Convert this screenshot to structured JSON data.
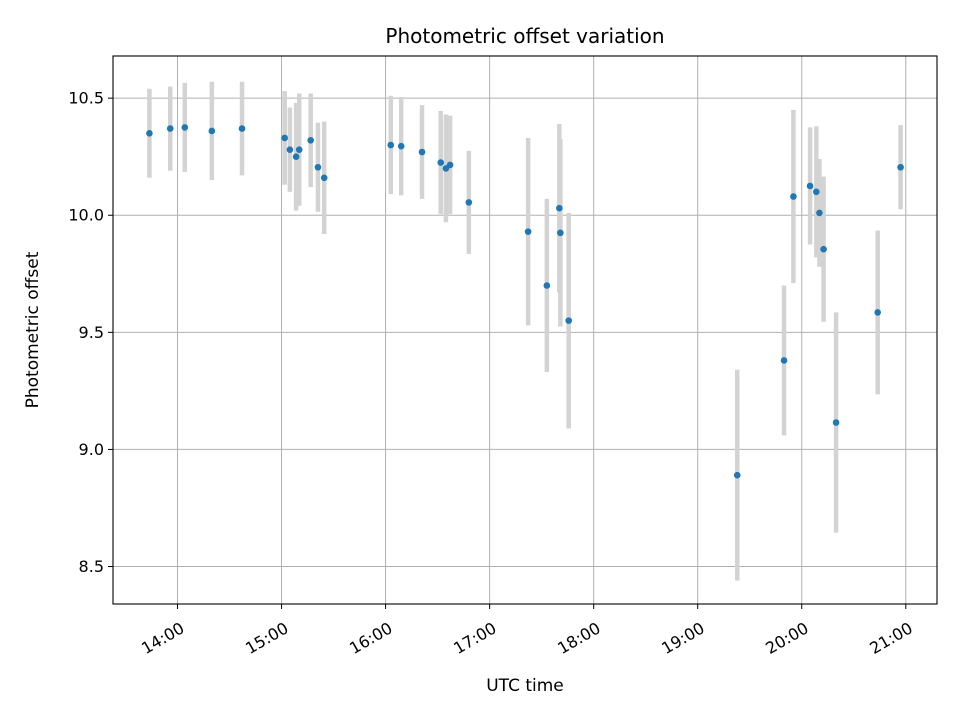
{
  "chart_data": {
    "type": "scatter",
    "title": "Photometric offset variation",
    "xlabel": "UTC time",
    "ylabel": "Photometric offset",
    "x_unit": "hours UTC",
    "xlim": [
      13.38,
      21.3
    ],
    "ylim": [
      8.34,
      10.68
    ],
    "grid": true,
    "x_ticks": [
      {
        "value": 14,
        "label": "14:00"
      },
      {
        "value": 15,
        "label": "15:00"
      },
      {
        "value": 16,
        "label": "16:00"
      },
      {
        "value": 17,
        "label": "17:00"
      },
      {
        "value": 18,
        "label": "18:00"
      },
      {
        "value": 19,
        "label": "19:00"
      },
      {
        "value": 20,
        "label": "20:00"
      },
      {
        "value": 21,
        "label": "21:00"
      }
    ],
    "y_ticks": [
      {
        "value": 8.5,
        "label": "8.5"
      },
      {
        "value": 9.0,
        "label": "9.0"
      },
      {
        "value": 9.5,
        "label": "9.5"
      },
      {
        "value": 10.0,
        "label": "10.0"
      },
      {
        "value": 10.5,
        "label": "10.5"
      }
    ],
    "colors": {
      "marker": "#1f77b4",
      "errorbar": "#d3d3d3",
      "grid": "#b0b0b0"
    },
    "points": [
      {
        "x": 13.73,
        "y": 10.35,
        "err": 0.19
      },
      {
        "x": 13.93,
        "y": 10.37,
        "err": 0.18
      },
      {
        "x": 14.07,
        "y": 10.375,
        "err": 0.19
      },
      {
        "x": 14.33,
        "y": 10.36,
        "err": 0.21
      },
      {
        "x": 14.62,
        "y": 10.37,
        "err": 0.2
      },
      {
        "x": 15.03,
        "y": 10.33,
        "err": 0.2
      },
      {
        "x": 15.08,
        "y": 10.28,
        "err": 0.18
      },
      {
        "x": 15.14,
        "y": 10.25,
        "err": 0.23
      },
      {
        "x": 15.17,
        "y": 10.28,
        "err": 0.24
      },
      {
        "x": 15.28,
        "y": 10.32,
        "err": 0.2
      },
      {
        "x": 15.35,
        "y": 10.205,
        "err": 0.19
      },
      {
        "x": 15.41,
        "y": 10.16,
        "err": 0.24
      },
      {
        "x": 16.05,
        "y": 10.3,
        "err": 0.21
      },
      {
        "x": 16.15,
        "y": 10.295,
        "err": 0.21
      },
      {
        "x": 16.35,
        "y": 10.27,
        "err": 0.2
      },
      {
        "x": 16.53,
        "y": 10.225,
        "err": 0.22
      },
      {
        "x": 16.58,
        "y": 10.2,
        "err": 0.23
      },
      {
        "x": 16.62,
        "y": 10.215,
        "err": 0.21
      },
      {
        "x": 16.8,
        "y": 10.055,
        "err": 0.22
      },
      {
        "x": 17.37,
        "y": 9.93,
        "err": 0.4
      },
      {
        "x": 17.55,
        "y": 9.7,
        "err": 0.37
      },
      {
        "x": 17.67,
        "y": 10.03,
        "err": 0.36
      },
      {
        "x": 17.68,
        "y": 9.925,
        "err": 0.4
      },
      {
        "x": 17.76,
        "y": 9.55,
        "err": 0.46
      },
      {
        "x": 19.38,
        "y": 8.89,
        "err": 0.45
      },
      {
        "x": 19.83,
        "y": 9.38,
        "err": 0.32
      },
      {
        "x": 19.92,
        "y": 10.08,
        "err": 0.37
      },
      {
        "x": 20.08,
        "y": 10.125,
        "err": 0.25
      },
      {
        "x": 20.14,
        "y": 10.1,
        "err": 0.28
      },
      {
        "x": 20.17,
        "y": 10.01,
        "err": 0.23
      },
      {
        "x": 20.21,
        "y": 9.855,
        "err": 0.31
      },
      {
        "x": 20.33,
        "y": 9.115,
        "err": 0.47
      },
      {
        "x": 20.73,
        "y": 9.585,
        "err": 0.35
      },
      {
        "x": 20.95,
        "y": 10.205,
        "err": 0.18
      }
    ]
  }
}
